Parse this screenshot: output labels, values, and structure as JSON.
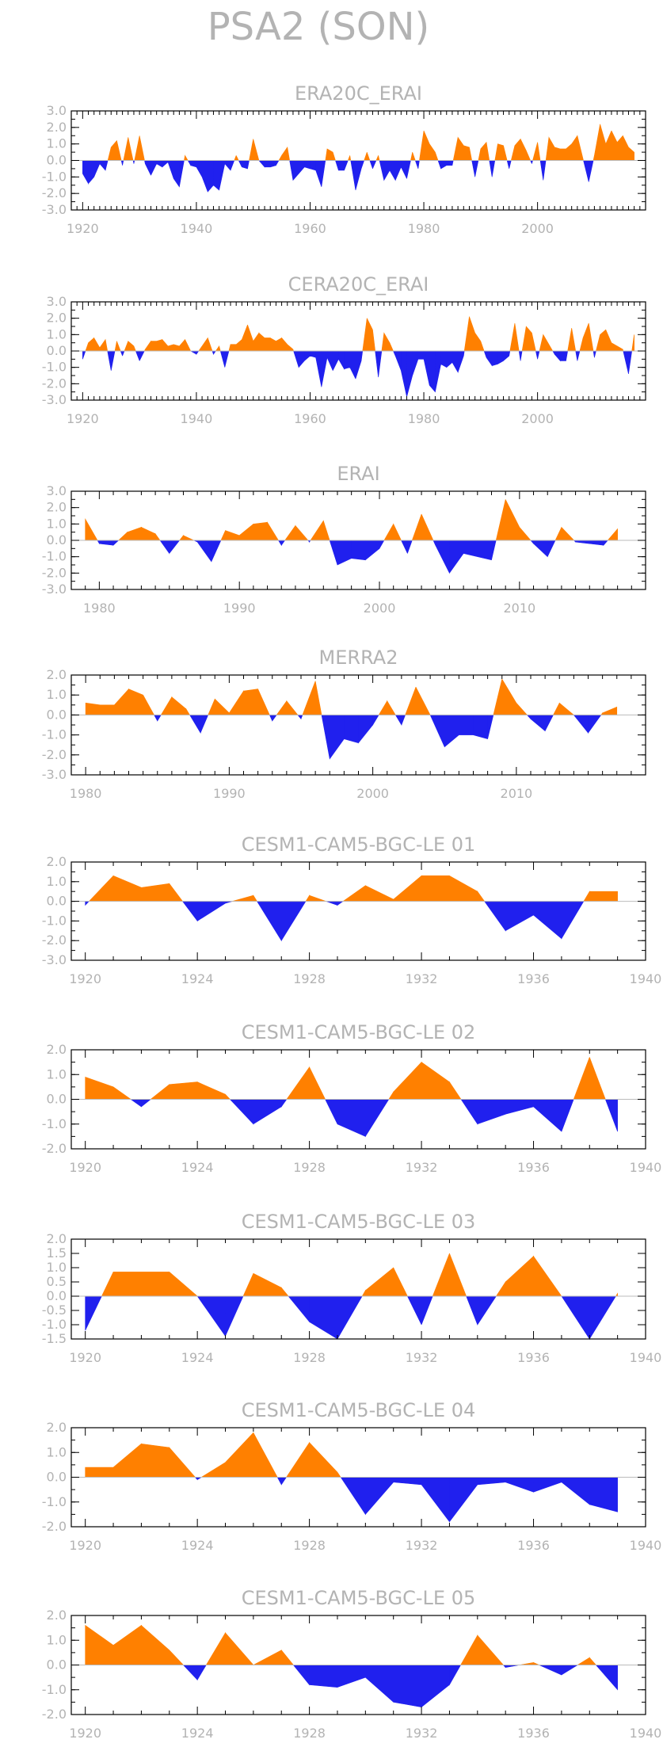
{
  "page": {
    "title": "PSA2 (SON)"
  },
  "colors": {
    "positive": "#ff8000",
    "negative": "#2020ee",
    "axis": "#000000",
    "text": "#b3b3b3"
  },
  "chart_data": [
    {
      "type": "area",
      "title": "ERA20C_ERAI",
      "xlim": [
        1918,
        2019
      ],
      "ylim": [
        -3.0,
        3.0
      ],
      "yticks": [
        "3.0",
        "2.0",
        "1.0",
        "0.0",
        "-1.0",
        "-2.0",
        "-3.0"
      ],
      "xticks": [
        "1920",
        "1940",
        "1960",
        "1980",
        "2000"
      ],
      "x": [
        1920,
        1921,
        1922,
        1923,
        1924,
        1925,
        1926,
        1927,
        1928,
        1929,
        1930,
        1931,
        1932,
        1933,
        1934,
        1935,
        1936,
        1937,
        1938,
        1939,
        1940,
        1941,
        1942,
        1943,
        1944,
        1945,
        1946,
        1947,
        1948,
        1949,
        1950,
        1951,
        1952,
        1953,
        1954,
        1955,
        1956,
        1957,
        1958,
        1959,
        1960,
        1961,
        1962,
        1963,
        1964,
        1965,
        1966,
        1967,
        1968,
        1969,
        1970,
        1971,
        1972,
        1973,
        1974,
        1975,
        1976,
        1977,
        1978,
        1979,
        1980,
        1981,
        1982,
        1983,
        1984,
        1985,
        1986,
        1987,
        1988,
        1989,
        1990,
        1991,
        1992,
        1993,
        1994,
        1995,
        1996,
        1997,
        1998,
        1999,
        2000,
        2001,
        2002,
        2003,
        2004,
        2005,
        2006,
        2007,
        2008,
        2009,
        2010,
        2011,
        2012,
        2013,
        2014,
        2015,
        2016,
        2017
      ],
      "values": [
        -0.8,
        -1.4,
        -1.0,
        -0.2,
        -0.6,
        0.8,
        1.2,
        -0.3,
        1.4,
        -0.2,
        1.5,
        -0.2,
        -0.9,
        -0.2,
        -0.4,
        -0.1,
        -1.1,
        -1.6,
        0.3,
        -0.3,
        -0.4,
        -1.0,
        -1.9,
        -1.5,
        -1.8,
        -0.2,
        -0.6,
        0.3,
        -0.4,
        -0.5,
        1.3,
        0.0,
        -0.4,
        -0.4,
        -0.3,
        0.3,
        0.8,
        -1.2,
        -0.8,
        -0.4,
        -0.5,
        -0.6,
        -1.6,
        0.7,
        0.5,
        -0.6,
        -0.6,
        0.3,
        -1.8,
        -0.5,
        0.5,
        -0.5,
        0.3,
        -1.2,
        -0.6,
        -1.2,
        -0.4,
        -1.1,
        0.5,
        -0.5,
        1.8,
        1.0,
        0.5,
        -0.5,
        -0.3,
        -0.3,
        1.4,
        0.9,
        0.8,
        -1.0,
        0.7,
        1.1,
        -1.0,
        1.0,
        0.9,
        -0.5,
        0.9,
        1.3,
        0.6,
        -0.2,
        1.1,
        -1.2,
        1.4,
        0.8,
        0.7,
        0.7,
        1.0,
        1.5,
        0.1,
        -1.3,
        0.3,
        2.2,
        1.0,
        1.8,
        1.1,
        1.5,
        0.8,
        0.5
      ]
    },
    {
      "type": "area",
      "title": "CERA20C_ERAI",
      "xlim": [
        1918,
        2019
      ],
      "ylim": [
        -3.0,
        3.0
      ],
      "yticks": [
        "3.0",
        "2.0",
        "1.0",
        "0.0",
        "-1.0",
        "-2.0",
        "-3.0"
      ],
      "xticks": [
        "1920",
        "1940",
        "1960",
        "1980",
        "2000"
      ],
      "x": [
        1920,
        1921,
        1922,
        1923,
        1924,
        1925,
        1926,
        1927,
        1928,
        1929,
        1930,
        1931,
        1932,
        1933,
        1934,
        1935,
        1936,
        1937,
        1938,
        1939,
        1940,
        1941,
        1942,
        1943,
        1944,
        1945,
        1946,
        1947,
        1948,
        1949,
        1950,
        1951,
        1952,
        1953,
        1954,
        1955,
        1956,
        1957,
        1958,
        1959,
        1960,
        1961,
        1962,
        1963,
        1964,
        1965,
        1966,
        1967,
        1968,
        1969,
        1970,
        1971,
        1972,
        1973,
        1974,
        1975,
        1976,
        1977,
        1978,
        1979,
        1980,
        1981,
        1982,
        1983,
        1984,
        1985,
        1986,
        1987,
        1988,
        1989,
        1990,
        1991,
        1992,
        1993,
        1994,
        1995,
        1996,
        1997,
        1998,
        1999,
        2000,
        2001,
        2002,
        2003,
        2004,
        2005,
        2006,
        2007,
        2008,
        2009,
        2010,
        2011,
        2012,
        2013,
        2014,
        2015,
        2016,
        2017
      ],
      "values": [
        -0.5,
        0.5,
        0.8,
        0.2,
        0.7,
        -1.2,
        0.6,
        -0.3,
        0.6,
        0.3,
        -0.6,
        0.1,
        0.6,
        0.6,
        0.7,
        0.3,
        0.4,
        0.3,
        0.7,
        0.0,
        -0.2,
        0.3,
        0.8,
        -0.2,
        0.3,
        -1.0,
        0.4,
        0.4,
        0.7,
        1.6,
        0.6,
        1.1,
        0.8,
        0.8,
        0.6,
        0.8,
        0.4,
        0.1,
        -1.0,
        -0.6,
        -0.3,
        -0.4,
        -2.2,
        -0.4,
        -1.2,
        -0.5,
        -1.1,
        -1.0,
        -1.7,
        -0.6,
        2.0,
        1.3,
        -1.6,
        1.1,
        0.5,
        -0.3,
        -1.2,
        -2.8,
        -1.5,
        -0.5,
        -0.5,
        -2.1,
        -2.5,
        -0.8,
        -1.0,
        -0.7,
        -1.3,
        -0.3,
        2.1,
        1.1,
        0.6,
        -0.4,
        -0.9,
        -0.8,
        -0.6,
        -0.3,
        1.7,
        -0.6,
        1.5,
        1.1,
        -0.5,
        1.0,
        0.4,
        -0.2,
        -0.6,
        -0.6,
        1.4,
        -0.6,
        0.8,
        1.7,
        -0.4,
        1.0,
        1.3,
        0.5,
        0.3,
        0.1,
        -1.4,
        1.0
      ]
    },
    {
      "type": "area",
      "title": "ERAI",
      "xlim": [
        1978,
        2019
      ],
      "ylim": [
        -3.0,
        3.0
      ],
      "yticks": [
        "3.0",
        "2.0",
        "1.0",
        "0.0",
        "-1.0",
        "-2.0",
        "-3.0"
      ],
      "xticks": [
        "1980",
        "1990",
        "2000",
        "2010"
      ],
      "x": [
        1979,
        1980,
        1981,
        1982,
        1983,
        1984,
        1985,
        1986,
        1987,
        1988,
        1989,
        1990,
        1991,
        1992,
        1993,
        1994,
        1995,
        1996,
        1997,
        1998,
        1999,
        2000,
        2001,
        2002,
        2003,
        2004,
        2005,
        2006,
        2007,
        2008,
        2009,
        2010,
        2011,
        2012,
        2013,
        2014,
        2015,
        2016,
        2017
      ],
      "values": [
        1.3,
        -0.2,
        -0.3,
        0.5,
        0.8,
        0.4,
        -0.8,
        0.3,
        -0.1,
        -1.3,
        0.6,
        0.3,
        1.0,
        1.1,
        -0.3,
        0.9,
        -0.1,
        1.2,
        -1.5,
        -1.1,
        -1.2,
        -0.5,
        1.0,
        -0.8,
        1.6,
        -0.3,
        -2.0,
        -0.8,
        -1.0,
        -1.2,
        2.5,
        0.8,
        -0.2,
        -1.0,
        0.8,
        -0.1,
        -0.2,
        -0.3,
        0.7
      ]
    },
    {
      "type": "area",
      "title": "MERRA2",
      "xlim": [
        1979,
        2019
      ],
      "ylim": [
        -3.0,
        2.0
      ],
      "yticks": [
        "2.0",
        "1.0",
        "0.0",
        "-1.0",
        "-2.0",
        "-3.0"
      ],
      "xticks": [
        "1980",
        "1990",
        "2000",
        "2010"
      ],
      "x": [
        1980,
        1981,
        1982,
        1983,
        1984,
        1985,
        1986,
        1987,
        1988,
        1989,
        1990,
        1991,
        1992,
        1993,
        1994,
        1995,
        1996,
        1997,
        1998,
        1999,
        2000,
        2001,
        2002,
        2003,
        2004,
        2005,
        2006,
        2007,
        2008,
        2009,
        2010,
        2011,
        2012,
        2013,
        2014,
        2015,
        2016,
        2017
      ],
      "values": [
        0.6,
        0.5,
        0.5,
        1.3,
        1.0,
        -0.3,
        0.9,
        0.3,
        -0.9,
        0.8,
        0.1,
        1.2,
        1.3,
        -0.3,
        0.7,
        -0.2,
        1.7,
        -2.2,
        -1.2,
        -1.4,
        -0.5,
        0.7,
        -0.5,
        1.4,
        0.0,
        -1.6,
        -1.0,
        -1.0,
        -1.2,
        1.8,
        0.6,
        -0.2,
        -0.8,
        0.6,
        0.0,
        -0.9,
        0.1,
        0.4
      ]
    },
    {
      "type": "area",
      "title": "CESM1-CAM5-BGC-LE 01",
      "xlim": [
        1919.5,
        1940
      ],
      "ylim": [
        -3.0,
        2.0
      ],
      "yticks": [
        "2.0",
        "1.0",
        "0.0",
        "-1.0",
        "-2.0",
        "-3.0"
      ],
      "xticks": [
        "1920",
        "1924",
        "1928",
        "1932",
        "1936",
        "1940"
      ],
      "x": [
        1920,
        1921,
        1922,
        1923,
        1924,
        1925,
        1926,
        1927,
        1928,
        1929,
        1930,
        1931,
        1932,
        1933,
        1934,
        1935,
        1936,
        1937,
        1938,
        1939
      ],
      "values": [
        -0.2,
        1.3,
        0.7,
        0.9,
        -1.0,
        -0.1,
        0.3,
        -2.0,
        0.3,
        -0.2,
        0.8,
        0.1,
        1.3,
        1.3,
        0.5,
        -1.5,
        -0.7,
        -1.9,
        0.5,
        0.5
      ]
    },
    {
      "type": "area",
      "title": "CESM1-CAM5-BGC-LE 02",
      "xlim": [
        1919.5,
        1940
      ],
      "ylim": [
        -2.0,
        2.0
      ],
      "yticks": [
        "2.0",
        "1.0",
        "0.0",
        "-1.0",
        "-2.0"
      ],
      "xticks": [
        "1920",
        "1924",
        "1928",
        "1932",
        "1936",
        "1940"
      ],
      "x": [
        1920,
        1921,
        1922,
        1923,
        1924,
        1925,
        1926,
        1927,
        1928,
        1929,
        1930,
        1931,
        1932,
        1933,
        1934,
        1935,
        1936,
        1937,
        1938,
        1939
      ],
      "values": [
        0.9,
        0.5,
        -0.3,
        0.6,
        0.7,
        0.2,
        -1.0,
        -0.3,
        1.3,
        -1.0,
        -1.5,
        0.3,
        1.5,
        0.7,
        -1.0,
        -0.6,
        -0.3,
        -1.3,
        1.7,
        -1.3
      ]
    },
    {
      "type": "area",
      "title": "CESM1-CAM5-BGC-LE 03",
      "xlim": [
        1919.5,
        1940
      ],
      "ylim": [
        -1.5,
        2.0
      ],
      "yticks": [
        "2.0",
        "1.5",
        "1.0",
        "0.5",
        "0.0",
        "-0.5",
        "-1.0",
        "-1.5"
      ],
      "xticks": [
        "1920",
        "1924",
        "1928",
        "1932",
        "1936",
        "1940"
      ],
      "x": [
        1920,
        1921,
        1922,
        1923,
        1924,
        1925,
        1926,
        1927,
        1928,
        1929,
        1930,
        1931,
        1932,
        1933,
        1934,
        1935,
        1936,
        1937,
        1938,
        1939
      ],
      "values": [
        -1.2,
        0.85,
        0.85,
        0.85,
        0.0,
        -1.4,
        0.8,
        0.3,
        -0.9,
        -1.5,
        0.2,
        1.0,
        -1.0,
        1.5,
        -1.0,
        0.5,
        1.4,
        0.0,
        -1.5,
        0.1
      ]
    },
    {
      "type": "area",
      "title": "CESM1-CAM5-BGC-LE 04",
      "xlim": [
        1919.5,
        1940
      ],
      "ylim": [
        -2.0,
        2.0
      ],
      "yticks": [
        "2.0",
        "1.0",
        "0.0",
        "-1.0",
        "-2.0"
      ],
      "xticks": [
        "1920",
        "1924",
        "1928",
        "1932",
        "1936",
        "1940"
      ],
      "x": [
        1920,
        1921,
        1922,
        1923,
        1924,
        1925,
        1926,
        1927,
        1928,
        1929,
        1930,
        1931,
        1932,
        1933,
        1934,
        1935,
        1936,
        1937,
        1938,
        1939
      ],
      "values": [
        0.4,
        0.4,
        1.35,
        1.2,
        -0.1,
        0.6,
        1.8,
        -0.3,
        1.4,
        0.2,
        -1.5,
        -0.2,
        -0.3,
        -1.8,
        -0.3,
        -0.2,
        -0.6,
        -0.2,
        -1.1,
        -1.4
      ]
    },
    {
      "type": "area",
      "title": "CESM1-CAM5-BGC-LE 05",
      "xlim": [
        1919.5,
        1940
      ],
      "ylim": [
        -2.0,
        2.0
      ],
      "yticks": [
        "2.0",
        "1.0",
        "0.0",
        "-1.0",
        "-2.0"
      ],
      "xticks": [
        "1920",
        "1924",
        "1928",
        "1932",
        "1936",
        "1940"
      ],
      "x": [
        1920,
        1921,
        1922,
        1923,
        1924,
        1925,
        1926,
        1927,
        1928,
        1929,
        1930,
        1931,
        1932,
        1933,
        1934,
        1935,
        1936,
        1937,
        1938,
        1939
      ],
      "values": [
        1.6,
        0.8,
        1.6,
        0.6,
        -0.6,
        1.3,
        0.0,
        0.6,
        -0.8,
        -0.9,
        -0.5,
        -1.5,
        -1.7,
        -0.8,
        1.2,
        -0.1,
        0.1,
        -0.4,
        0.3,
        -1.0
      ]
    }
  ]
}
